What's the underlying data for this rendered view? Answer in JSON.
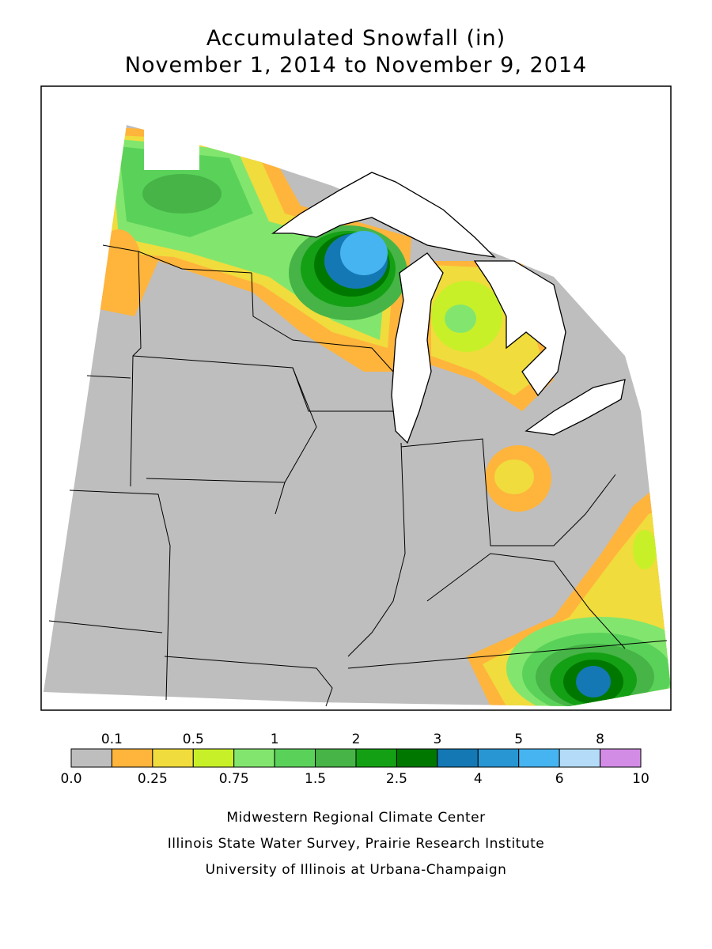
{
  "header": {
    "title": "Accumulated Snowfall (in)",
    "subtitle": "November 1, 2014 to November 9, 2014"
  },
  "legend": {
    "bounds": [
      "0.0",
      "0.1",
      "0.25",
      "0.5",
      "0.75",
      "1",
      "1.5",
      "2",
      "2.5",
      "3",
      "4",
      "5",
      "6",
      "8",
      "10"
    ],
    "colors": [
      "#bebebe",
      "#ffb43c",
      "#f0dc3c",
      "#c8f028",
      "#82e66e",
      "#5ad25a",
      "#46b446",
      "#14a014",
      "#007800",
      "#1478b4",
      "#2896d2",
      "#46b4f0",
      "#b4dcf8",
      "#d28ce6"
    ]
  },
  "credits": [
    "Midwestern Regional Climate Center",
    "Illinois State Water Survey, Prairie Research Institute",
    "University of Illinois at Urbana-Champaign"
  ]
}
